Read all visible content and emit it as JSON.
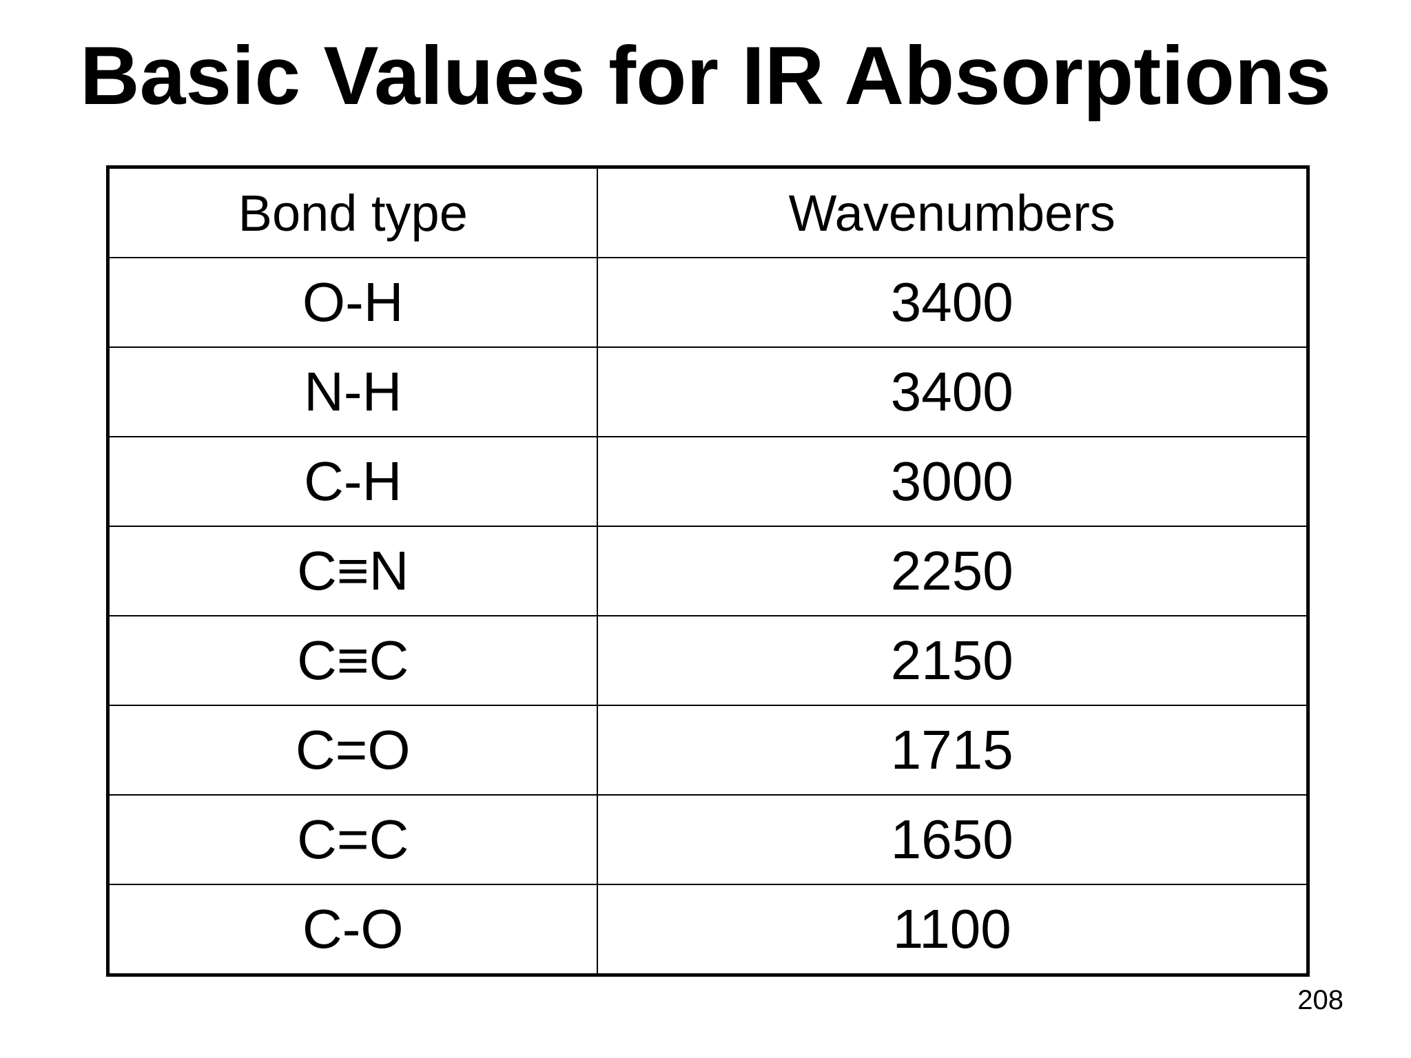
{
  "title": "Basic Values for IR Absorptions",
  "table": {
    "headers": [
      "Bond type",
      "Wavenumbers"
    ],
    "rows": [
      {
        "bond": "O-H",
        "wavenumber": "3400"
      },
      {
        "bond": "N-H",
        "wavenumber": "3400"
      },
      {
        "bond": "C-H",
        "wavenumber": "3000"
      },
      {
        "bond": "C≡N",
        "wavenumber": "2250"
      },
      {
        "bond": "C≡C",
        "wavenumber": "2150"
      },
      {
        "bond": "C=O",
        "wavenumber": "1715"
      },
      {
        "bond": "C=C",
        "wavenumber": "1650"
      },
      {
        "bond": "C-O",
        "wavenumber": "1100"
      }
    ]
  },
  "page_number": "208"
}
